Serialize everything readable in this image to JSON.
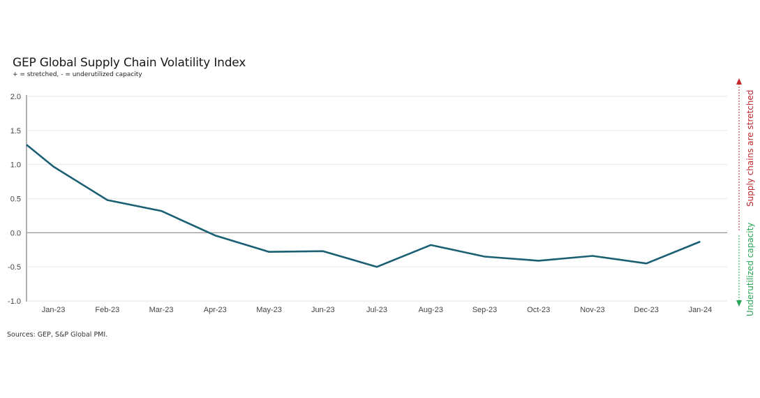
{
  "header": {
    "title": "GEP Global Supply Chain Volatility Index",
    "subtitle": "+ = stretched, - = underutilized capacity"
  },
  "footer": {
    "source": "Sources: GEP, S&P Global PMI."
  },
  "annotations": {
    "up_label": "Supply chains are stretched",
    "down_label": "Underutilized capacity",
    "up_color": "#c0282d",
    "down_color": "#2aa556"
  },
  "colors": {
    "line": "#1a5f73",
    "grid": "#e6e6e6",
    "zero_line": "#9a9a9a",
    "axis": "#b0b0b0"
  },
  "chart_data": {
    "type": "line",
    "title": "GEP Global Supply Chain Volatility Index",
    "subtitle": "+ = stretched, - = underutilized capacity",
    "xlabel": "",
    "ylabel": "",
    "ylim": [
      -1.0,
      2.0
    ],
    "yticks": [
      "2.0",
      "1.5",
      "1.0",
      "0.5",
      "0.0",
      "-0.5",
      "-1.0"
    ],
    "ytick_values": [
      2.0,
      1.5,
      1.0,
      0.5,
      0.0,
      -0.5,
      -1.0
    ],
    "grid": true,
    "legend": "none",
    "start_value_at_axis": 1.29,
    "categories": [
      "Jan-23",
      "Feb-23",
      "Mar-23",
      "Apr-23",
      "May-23",
      "Jun-23",
      "Jul-23",
      "Aug-23",
      "Sep-23",
      "Oct-23",
      "Nov-23",
      "Dec-23",
      "Jan-24"
    ],
    "series": [
      {
        "name": "GEP Global Supply Chain Volatility Index",
        "values": [
          0.97,
          0.48,
          0.32,
          -0.04,
          -0.28,
          -0.27,
          -0.5,
          -0.18,
          -0.35,
          -0.41,
          -0.34,
          -0.45,
          -0.13
        ]
      }
    ],
    "source": "Sources: GEP, S&P Global PMI."
  }
}
